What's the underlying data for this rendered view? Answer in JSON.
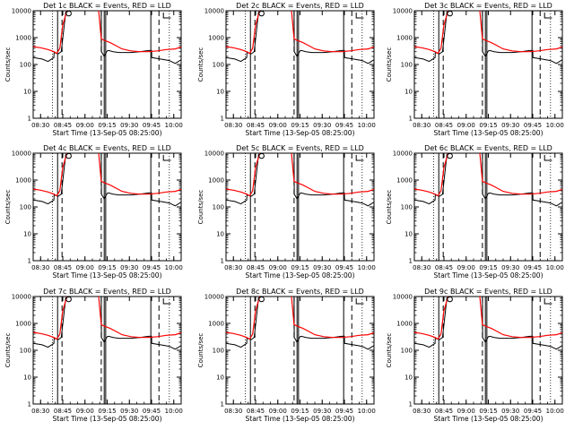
{
  "chart_data": [
    {
      "type": "line",
      "title": "Det 1c BLACK = Events, RED = LLD",
      "xlabel": "Start Time (13-Sep-05 08:25:00)",
      "ylabel": "Counts/sec",
      "yscale": "log",
      "ylim": [
        1,
        10000
      ],
      "y_ticks": [
        "1",
        "10",
        "100",
        "1000",
        "10000"
      ],
      "x_ticks": [
        "08:30",
        "08:45",
        "09:00",
        "09:15",
        "09:30",
        "09:45",
        "10:00"
      ],
      "series": [
        {
          "name": "Events",
          "color": "#000000"
        },
        {
          "name": "LLD",
          "color": "#ff0000"
        }
      ]
    },
    {
      "type": "line",
      "title": "Det 2c BLACK = Events, RED = LLD",
      "xlabel": "Start Time (13-Sep-05 08:25:00)",
      "ylabel": "Counts/sec",
      "yscale": "log",
      "ylim": [
        1,
        10000
      ],
      "y_ticks": [
        "1",
        "10",
        "100",
        "1000",
        "10000"
      ],
      "x_ticks": [
        "08:30",
        "08:45",
        "09:00",
        "09:15",
        "09:30",
        "09:45",
        "10:00"
      ],
      "series": [
        {
          "name": "Events",
          "color": "#000000"
        },
        {
          "name": "LLD",
          "color": "#ff0000"
        }
      ]
    },
    {
      "type": "line",
      "title": "Det 3c BLACK = Events, RED = LLD",
      "xlabel": "Start Time (13-Sep-05 08:25:00)",
      "ylabel": "Counts/sec",
      "yscale": "log",
      "ylim": [
        1,
        10000
      ],
      "y_ticks": [
        "1",
        "10",
        "100",
        "1000",
        "10000"
      ],
      "x_ticks": [
        "08:30",
        "08:45",
        "09:00",
        "09:15",
        "09:30",
        "09:45",
        "10:00"
      ],
      "series": [
        {
          "name": "Events",
          "color": "#000000"
        },
        {
          "name": "LLD",
          "color": "#ff0000"
        }
      ]
    },
    {
      "type": "line",
      "title": "Det 4c BLACK = Events, RED = LLD",
      "xlabel": "Start Time (13-Sep-05 08:25:00)",
      "ylabel": "Counts/sec",
      "yscale": "log",
      "ylim": [
        1,
        10000
      ],
      "y_ticks": [
        "1",
        "10",
        "100",
        "1000",
        "10000"
      ],
      "x_ticks": [
        "08:30",
        "08:45",
        "09:00",
        "09:15",
        "09:30",
        "09:45",
        "10:00"
      ],
      "series": [
        {
          "name": "Events",
          "color": "#000000"
        },
        {
          "name": "LLD",
          "color": "#ff0000"
        }
      ]
    },
    {
      "type": "line",
      "title": "Det 5c BLACK = Events, RED = LLD",
      "xlabel": "Start Time (13-Sep-05 08:25:00)",
      "ylabel": "Counts/sec",
      "yscale": "log",
      "ylim": [
        1,
        10000
      ],
      "y_ticks": [
        "1",
        "10",
        "100",
        "1000",
        "10000"
      ],
      "x_ticks": [
        "08:30",
        "08:45",
        "09:00",
        "09:15",
        "09:30",
        "09:45",
        "10:00"
      ],
      "series": [
        {
          "name": "Events",
          "color": "#000000"
        },
        {
          "name": "LLD",
          "color": "#ff0000"
        }
      ]
    },
    {
      "type": "line",
      "title": "Det 6c BLACK = Events, RED = LLD",
      "xlabel": "Start Time (13-Sep-05 08:25:00)",
      "ylabel": "Counts/sec",
      "yscale": "log",
      "ylim": [
        1,
        10000
      ],
      "y_ticks": [
        "1",
        "10",
        "100",
        "1000",
        "10000"
      ],
      "x_ticks": [
        "08:30",
        "08:45",
        "09:00",
        "09:15",
        "09:30",
        "09:45",
        "10:00"
      ],
      "series": [
        {
          "name": "Events",
          "color": "#000000"
        },
        {
          "name": "LLD",
          "color": "#ff0000"
        }
      ]
    },
    {
      "type": "line",
      "title": "Det 7c BLACK = Events, RED = LLD",
      "xlabel": "Start Time (13-Sep-05 08:25:00)",
      "ylabel": "Counts/sec",
      "yscale": "log",
      "ylim": [
        1,
        10000
      ],
      "y_ticks": [
        "1",
        "10",
        "100",
        "1000",
        "10000"
      ],
      "x_ticks": [
        "08:30",
        "08:45",
        "09:00",
        "09:15",
        "09:30",
        "09:45",
        "10:00"
      ],
      "series": [
        {
          "name": "Events",
          "color": "#000000"
        },
        {
          "name": "LLD",
          "color": "#ff0000"
        }
      ]
    },
    {
      "type": "line",
      "title": "Det 8c BLACK = Events, RED = LLD",
      "xlabel": "Start Time (13-Sep-05 08:25:00)",
      "ylabel": "Counts/sec",
      "yscale": "log",
      "ylim": [
        1,
        10000
      ],
      "y_ticks": [
        "1",
        "10",
        "100",
        "1000",
        "10000"
      ],
      "x_ticks": [
        "08:30",
        "08:45",
        "09:00",
        "09:15",
        "09:30",
        "09:45",
        "10:00"
      ],
      "series": [
        {
          "name": "Events",
          "color": "#000000"
        },
        {
          "name": "LLD",
          "color": "#ff0000"
        }
      ]
    },
    {
      "type": "line",
      "title": "Det 9c BLACK = Events, RED = LLD",
      "xlabel": "Start Time (13-Sep-05 08:25:00)",
      "ylabel": "Counts/sec",
      "yscale": "log",
      "ylim": [
        1,
        10000
      ],
      "y_ticks": [
        "1",
        "10",
        "100",
        "1000",
        "10000"
      ],
      "x_ticks": [
        "08:30",
        "08:45",
        "09:00",
        "09:15",
        "09:30",
        "09:45",
        "10:00"
      ],
      "series": [
        {
          "name": "Events",
          "color": "#000000"
        },
        {
          "name": "LLD",
          "color": "#ff0000"
        }
      ]
    }
  ]
}
